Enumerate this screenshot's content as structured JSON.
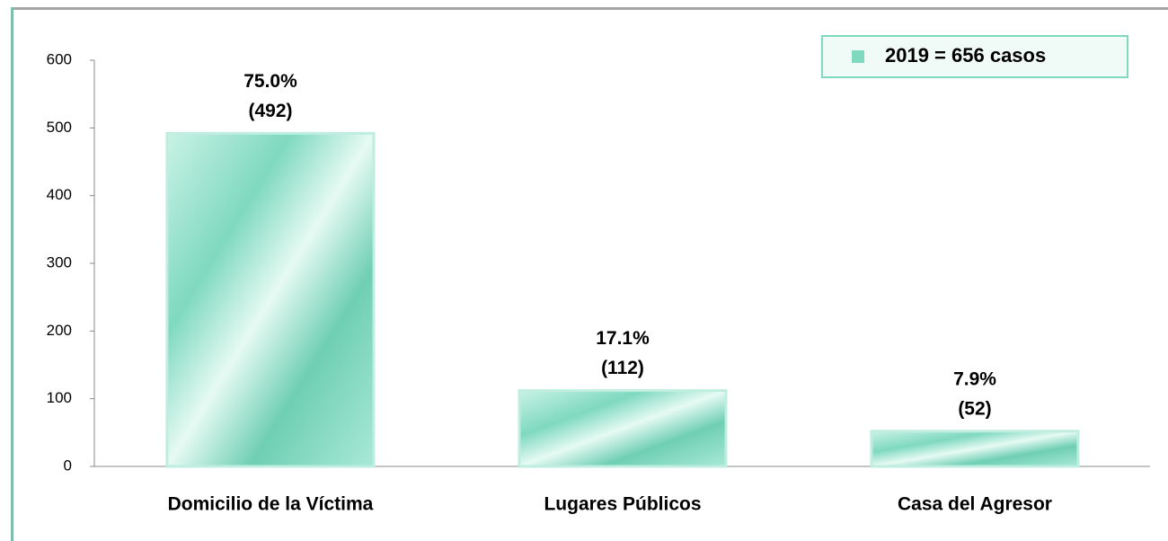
{
  "chart_data": {
    "type": "bar",
    "categories": [
      "Domicilio de la Víctima",
      "Lugares Públicos",
      "Casa del Agresor"
    ],
    "series": [
      {
        "name": "2019 =  656 casos",
        "color": "#7fd9bf",
        "values": [
          492,
          112,
          52
        ],
        "value_labels": [
          "(492)",
          "(112)",
          "(52)"
        ],
        "percent_labels": [
          "75.0%",
          "17.1%",
          "7.9%"
        ]
      }
    ],
    "ylim": [
      0,
      600
    ],
    "yticks": [
      0,
      100,
      200,
      300,
      400,
      500,
      600
    ],
    "grid": false,
    "legend": "top-right"
  }
}
